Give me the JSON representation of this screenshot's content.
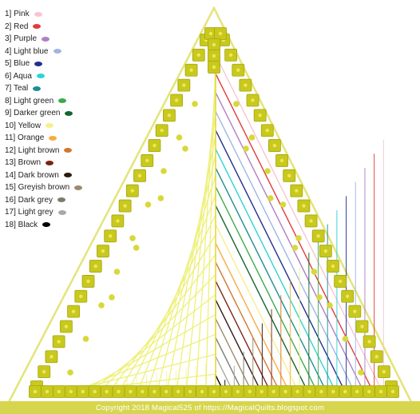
{
  "legend": [
    {
      "label": "1] Pink",
      "color": "#f7c6d0"
    },
    {
      "label": "2] Red",
      "color": "#e23b3b"
    },
    {
      "label": "3] Purple",
      "color": "#b07fc4"
    },
    {
      "label": "4] Light blue",
      "color": "#9fb6e2"
    },
    {
      "label": "5] Blue",
      "color": "#1f2f8f"
    },
    {
      "label": "6] Aqua",
      "color": "#2ed3cf"
    },
    {
      "label": "7] Teal",
      "color": "#1e8c95"
    },
    {
      "label": "8] Light green",
      "color": "#3dab4c"
    },
    {
      "label": "9] Darker green",
      "color": "#15652a"
    },
    {
      "label": "10] Yellow",
      "color": "#f7ef8a"
    },
    {
      "label": "11] Orange",
      "color": "#f7ac3e"
    },
    {
      "label": "12] Light brown",
      "color": "#d2772d"
    },
    {
      "label": "13] Brown",
      "color": "#7b2414"
    },
    {
      "label": "14] Dark brown",
      "color": "#2e1a10"
    },
    {
      "label": "15] Greyish brown",
      "color": "#9b8a6e"
    },
    {
      "label": "16] Dark grey",
      "color": "#7a7a6e"
    },
    {
      "label": "17] Light grey",
      "color": "#a8a8a8"
    },
    {
      "label": "18] Black",
      "color": "#000000"
    }
  ],
  "copyright": "Copyright 2018 Magical525 of https://MagicalQuilts.blogspot.com",
  "colors": {
    "triangle_outline": "#e4e47a",
    "peg": "#c8c81e",
    "peg_border": "#a6a60c",
    "hole": "#d8d83a",
    "yellow_thread": "#eef07a",
    "copyright_bar": "#d6d64e"
  }
}
